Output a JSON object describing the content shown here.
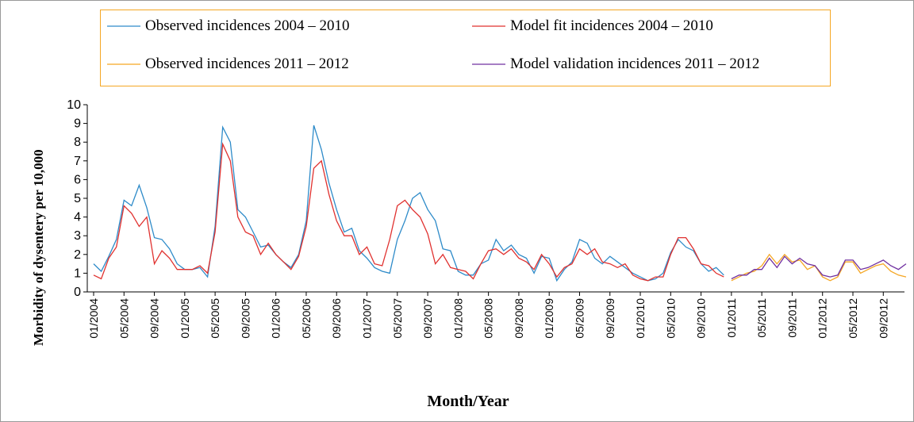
{
  "chart_data": {
    "type": "line",
    "x_label": "Month/Year",
    "y_label": "Morbidity of dysentery per 10,000",
    "categories": [
      "01/2004",
      null,
      null,
      null,
      "05/2004",
      null,
      null,
      null,
      "09/2004",
      null,
      null,
      null,
      "01/2005",
      null,
      null,
      null,
      "05/2005",
      null,
      null,
      null,
      "09/2005",
      null,
      null,
      null,
      "01/2006",
      null,
      null,
      null,
      "05/2006",
      null,
      null,
      null,
      "09/2006",
      null,
      null,
      null,
      "01/2007",
      null,
      null,
      null,
      "05/2007",
      null,
      null,
      null,
      "09/2007",
      null,
      null,
      null,
      "01/2008",
      null,
      null,
      null,
      "05/2008",
      null,
      null,
      null,
      "09/2008",
      null,
      null,
      null,
      "01/2009",
      null,
      null,
      null,
      "05/2009",
      null,
      null,
      null,
      "09/2009",
      null,
      null,
      null,
      "01/2010",
      null,
      null,
      null,
      "05/2010",
      null,
      null,
      null,
      "09/2010",
      null,
      null,
      null,
      "01/2011",
      null,
      null,
      null,
      "05/2011",
      null,
      null,
      null,
      "09/2011",
      null,
      null,
      null,
      "01/2012",
      null,
      null,
      null,
      "05/2012",
      null,
      null,
      null,
      "09/2012",
      null,
      null,
      null
    ],
    "series": [
      {
        "name": "Observed incidences 2004 – 2010",
        "color": "#2e8bc9",
        "values": [
          1.5,
          1.1,
          1.9,
          2.8,
          4.9,
          4.6,
          5.7,
          4.5,
          2.9,
          2.8,
          2.3,
          1.5,
          1.2,
          1.2,
          1.3,
          0.8,
          3.5,
          8.8,
          8.0,
          4.4,
          4.0,
          3.2,
          2.4,
          2.5,
          2.0,
          1.6,
          1.3,
          2.0,
          3.8,
          8.9,
          7.6,
          5.8,
          4.4,
          3.2,
          3.4,
          2.2,
          1.8,
          1.3,
          1.1,
          1.0,
          2.8,
          3.8,
          5.0,
          5.3,
          4.4,
          3.8,
          2.3,
          2.2,
          1.1,
          0.9,
          0.9,
          1.5,
          1.7,
          2.8,
          2.2,
          2.5,
          2.0,
          1.8,
          1.0,
          1.9,
          1.8,
          0.6,
          1.2,
          1.6,
          2.8,
          2.6,
          1.8,
          1.5,
          1.9,
          1.6,
          1.3,
          1.0,
          0.8,
          0.6,
          0.7,
          1.0,
          2.1,
          2.8,
          2.4,
          2.2,
          1.5,
          1.1,
          1.3,
          0.9,
          null,
          null,
          null,
          null,
          null,
          null,
          null,
          null,
          null,
          null,
          null,
          null,
          null,
          null,
          null,
          null,
          null,
          null,
          null,
          null,
          null,
          null,
          null,
          null
        ]
      },
      {
        "name": "Model fit incidences 2004 – 2010",
        "color": "#e0312f",
        "values": [
          0.9,
          0.7,
          1.8,
          2.4,
          4.6,
          4.2,
          3.5,
          4.0,
          1.5,
          2.2,
          1.8,
          1.2,
          1.2,
          1.2,
          1.4,
          1.0,
          3.2,
          7.9,
          7.0,
          4.0,
          3.2,
          3.0,
          2.0,
          2.6,
          2.0,
          1.6,
          1.2,
          1.9,
          3.5,
          6.6,
          7.0,
          5.2,
          3.8,
          3.0,
          3.0,
          2.0,
          2.4,
          1.5,
          1.4,
          2.8,
          4.6,
          4.9,
          4.4,
          4.0,
          3.1,
          1.5,
          2.0,
          1.3,
          1.2,
          1.1,
          0.7,
          1.5,
          2.2,
          2.3,
          2.0,
          2.3,
          1.8,
          1.6,
          1.2,
          2.0,
          1.5,
          0.8,
          1.3,
          1.5,
          2.3,
          2.0,
          2.3,
          1.6,
          1.5,
          1.3,
          1.5,
          0.9,
          0.7,
          0.6,
          0.8,
          0.8,
          2.0,
          2.9,
          2.9,
          2.3,
          1.5,
          1.4,
          1.0,
          0.8,
          null,
          null,
          null,
          null,
          null,
          null,
          null,
          null,
          null,
          null,
          null,
          null,
          null,
          null,
          null,
          null,
          null,
          null,
          null,
          null,
          null,
          null,
          null,
          null
        ]
      },
      {
        "name": "Observed incidences 2011 – 2012",
        "color": "#f5a623",
        "values": [
          null,
          null,
          null,
          null,
          null,
          null,
          null,
          null,
          null,
          null,
          null,
          null,
          null,
          null,
          null,
          null,
          null,
          null,
          null,
          null,
          null,
          null,
          null,
          null,
          null,
          null,
          null,
          null,
          null,
          null,
          null,
          null,
          null,
          null,
          null,
          null,
          null,
          null,
          null,
          null,
          null,
          null,
          null,
          null,
          null,
          null,
          null,
          null,
          null,
          null,
          null,
          null,
          null,
          null,
          null,
          null,
          null,
          null,
          null,
          null,
          null,
          null,
          null,
          null,
          null,
          null,
          null,
          null,
          null,
          null,
          null,
          null,
          null,
          null,
          null,
          null,
          null,
          null,
          null,
          null,
          null,
          null,
          null,
          null,
          0.6,
          0.8,
          1.0,
          1.1,
          1.4,
          2.0,
          1.5,
          2.0,
          1.6,
          1.7,
          1.2,
          1.4,
          0.8,
          0.6,
          0.8,
          1.6,
          1.6,
          1.0,
          1.2,
          1.4,
          1.5,
          1.1,
          0.9,
          0.8
        ]
      },
      {
        "name": "Model validation incidences 2011 – 2012",
        "color": "#7030a0",
        "values": [
          null,
          null,
          null,
          null,
          null,
          null,
          null,
          null,
          null,
          null,
          null,
          null,
          null,
          null,
          null,
          null,
          null,
          null,
          null,
          null,
          null,
          null,
          null,
          null,
          null,
          null,
          null,
          null,
          null,
          null,
          null,
          null,
          null,
          null,
          null,
          null,
          null,
          null,
          null,
          null,
          null,
          null,
          null,
          null,
          null,
          null,
          null,
          null,
          null,
          null,
          null,
          null,
          null,
          null,
          null,
          null,
          null,
          null,
          null,
          null,
          null,
          null,
          null,
          null,
          null,
          null,
          null,
          null,
          null,
          null,
          null,
          null,
          null,
          null,
          null,
          null,
          null,
          null,
          null,
          null,
          null,
          null,
          null,
          null,
          0.7,
          0.9,
          0.9,
          1.2,
          1.2,
          1.8,
          1.3,
          1.9,
          1.5,
          1.8,
          1.5,
          1.4,
          0.9,
          0.8,
          0.9,
          1.7,
          1.7,
          1.2,
          1.3,
          1.5,
          1.7,
          1.4,
          1.2,
          1.5
        ]
      }
    ],
    "ylim": [
      0,
      10
    ],
    "yticks": [
      0,
      1,
      2,
      3,
      4,
      5,
      6,
      7,
      8,
      9,
      10
    ],
    "legend": "top"
  }
}
